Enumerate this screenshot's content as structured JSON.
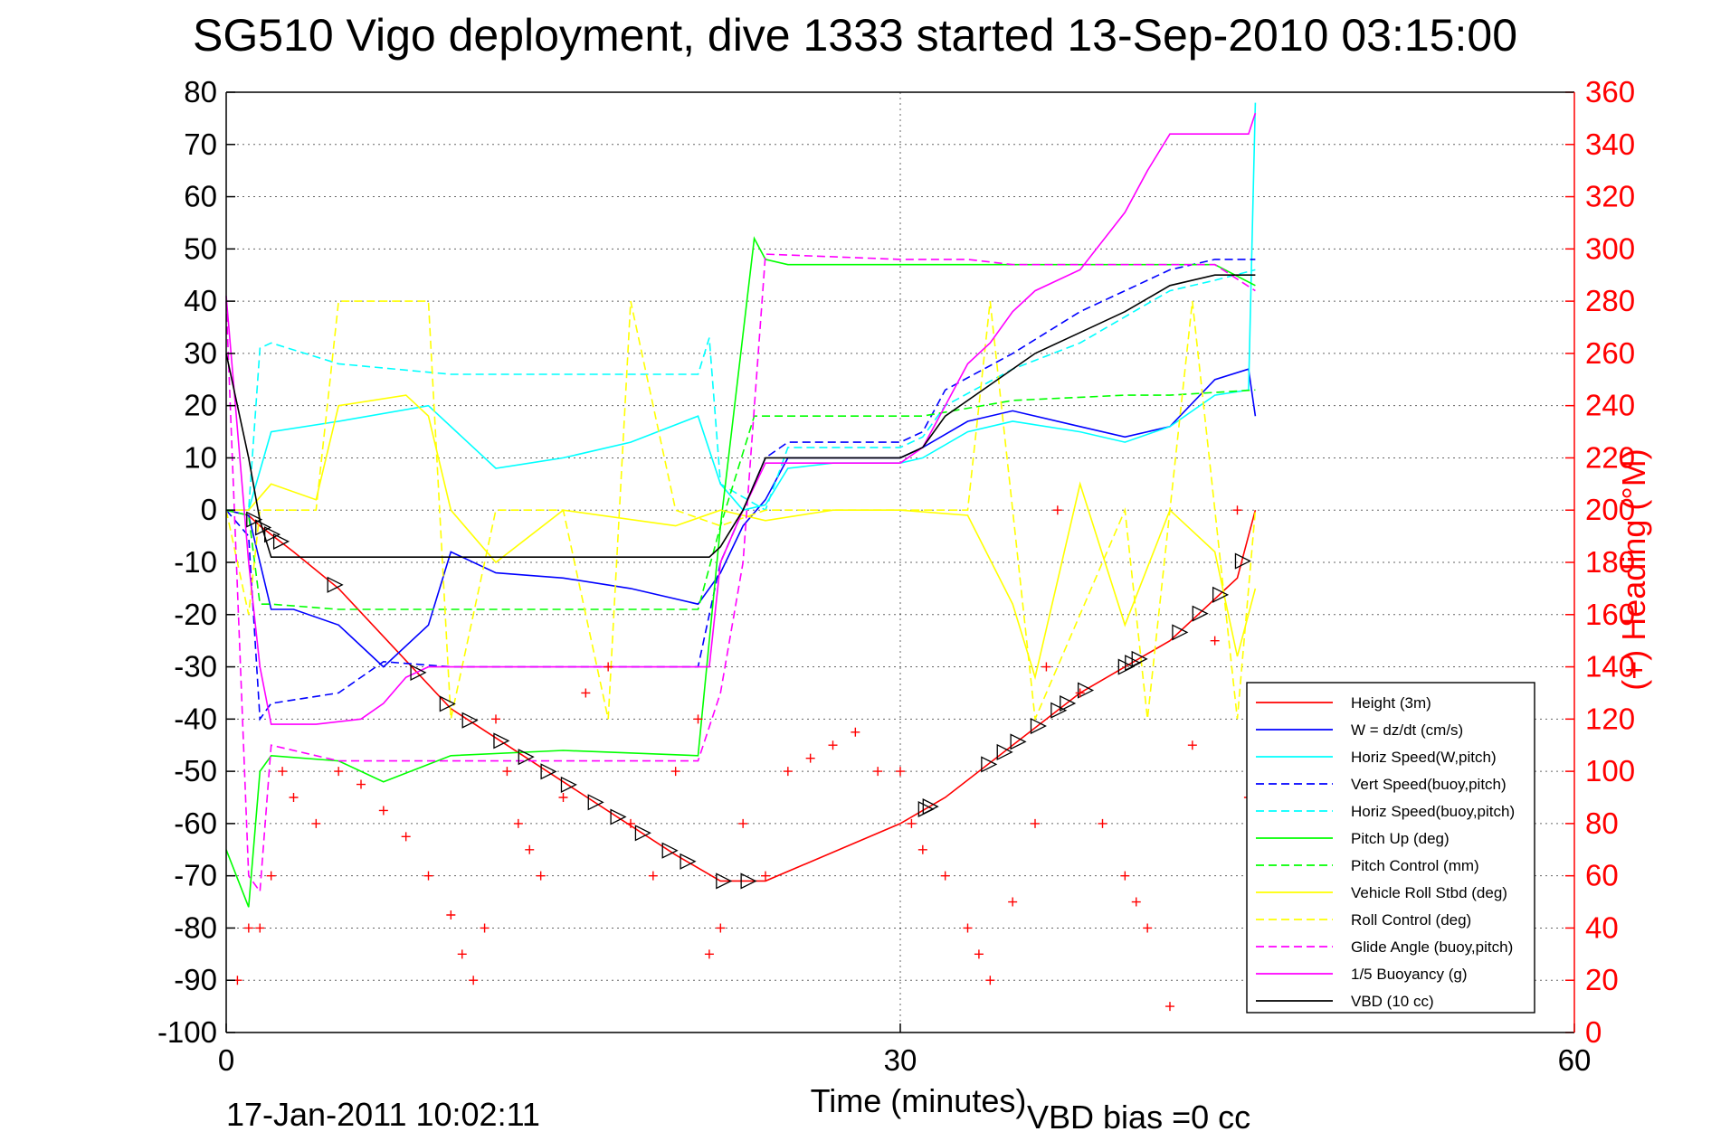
{
  "chart_data": {
    "type": "line",
    "title": "SG510 Vigo deployment, dive 1333 started 13-Sep-2010 03:15:00",
    "xlabel": "Time (minutes)",
    "ylabel": "",
    "ylabel_right": "(+) Heading (°M)",
    "xlim": [
      0,
      60
    ],
    "ylim": [
      -100,
      80
    ],
    "ylim_right": [
      0,
      360
    ],
    "x_ticks": [
      "0",
      "30",
      "60"
    ],
    "y_ticks": [
      "80",
      "70",
      "60",
      "50",
      "40",
      "30",
      "20",
      "10",
      "0",
      "-10",
      "-20",
      "-30",
      "-40",
      "-50",
      "-60",
      "-70",
      "-80",
      "-90",
      "-100"
    ],
    "y_right_ticks": [
      "360",
      "340",
      "320",
      "300",
      "280",
      "260",
      "240",
      "220",
      "200",
      "180",
      "160",
      "140",
      "120",
      "100",
      "80",
      "60",
      "40",
      "20",
      "0"
    ],
    "grid": true,
    "grid_x_positions": [
      30
    ],
    "legend_position": "bottom-right",
    "timestamp": "17-Jan-2011 10:02:11",
    "vbd_bias": "VBD bias =0 cc",
    "series": [
      {
        "name": "Height (3m)",
        "color": "#ff0000",
        "style": "solid",
        "x": [
          0,
          1,
          1.5,
          3,
          5,
          10,
          15,
          20,
          22,
          24,
          30,
          32,
          38,
          42,
          45,
          45.8
        ],
        "y": [
          0,
          -1,
          -3,
          -8,
          -15,
          -38,
          -52,
          -66,
          -71,
          -71,
          -60,
          -55,
          -35,
          -25,
          -13,
          0
        ]
      },
      {
        "name": "W = dz/dt (cm/s)",
        "color": "#0000ff",
        "style": "solid",
        "x": [
          0,
          1,
          2,
          3,
          5,
          7,
          9,
          10,
          12,
          15,
          18,
          21,
          22,
          23,
          24,
          25,
          27,
          30,
          31,
          33,
          35,
          38,
          40,
          42,
          44,
          45.5,
          45.8
        ],
        "y": [
          0,
          -1,
          -19,
          -19,
          -22,
          -30,
          -22,
          -8,
          -12,
          -13,
          -15,
          -18,
          -12,
          -3,
          2,
          10,
          10,
          10,
          12,
          17,
          19,
          16,
          14,
          16,
          25,
          27,
          18
        ]
      },
      {
        "name": "Horiz Speed(W,pitch)",
        "color": "#00ffff",
        "style": "solid",
        "x": [
          0,
          1,
          2,
          5,
          9,
          12,
          15,
          18,
          21,
          22,
          23,
          24,
          25,
          27,
          30,
          31,
          33,
          35,
          38,
          40,
          42,
          44,
          45.5,
          45.8
        ],
        "y": [
          0,
          0,
          15,
          17,
          20,
          8,
          10,
          13,
          18,
          5,
          0,
          1,
          8,
          9,
          9,
          10,
          15,
          17,
          15,
          13,
          16,
          22,
          23,
          78
        ]
      },
      {
        "name": "Vert Speed(buoy,pitch)",
        "color": "#0000ff",
        "style": "dashed",
        "x": [
          0,
          1,
          1.5,
          2,
          5,
          7,
          10,
          15,
          20,
          21,
          22,
          24,
          25,
          30,
          31,
          32,
          35,
          38,
          40,
          42,
          44,
          45.8
        ],
        "y": [
          0,
          -5,
          -40,
          -37,
          -35,
          -29,
          -30,
          -30,
          -30,
          -30,
          -10,
          10,
          13,
          13,
          15,
          23,
          30,
          38,
          42,
          46,
          48,
          48
        ]
      },
      {
        "name": "Horiz Speed(buoy,pitch)",
        "color": "#00ffff",
        "style": "dashed",
        "x": [
          0,
          1,
          1.5,
          2,
          5,
          10,
          15,
          21,
          21.5,
          22,
          24,
          25,
          30,
          31,
          32,
          35,
          38,
          40,
          42,
          44,
          45.8
        ],
        "y": [
          0,
          0,
          31,
          32,
          28,
          26,
          26,
          26,
          33,
          5,
          0,
          12,
          12,
          14,
          20,
          27,
          32,
          37,
          42,
          44,
          46
        ]
      },
      {
        "name": "Pitch Up (deg)",
        "color": "#00ff00",
        "style": "solid",
        "x": [
          0,
          1,
          1.5,
          2,
          5,
          7,
          10,
          15,
          21,
          22,
          23.5,
          24,
          25,
          30,
          33,
          35,
          40,
          42,
          44,
          45.8
        ],
        "y": [
          -65,
          -76,
          -50,
          -47,
          -48,
          -52,
          -47,
          -46,
          -47,
          -3,
          52,
          48,
          47,
          47,
          47,
          47,
          47,
          47,
          47,
          43
        ]
      },
      {
        "name": "Pitch Control (mm)",
        "color": "#00ff00",
        "style": "dashed",
        "x": [
          0,
          1,
          1.5,
          2,
          5,
          10,
          15,
          21,
          22,
          23.5,
          30,
          31,
          35,
          40,
          42,
          45.8
        ],
        "y": [
          0,
          -1,
          -18,
          -18,
          -19,
          -19,
          -19,
          -19,
          -3,
          18,
          18,
          18,
          21,
          22,
          22,
          23
        ]
      },
      {
        "name": "Vehicle Roll Stbd (deg)",
        "color": "#ffff00",
        "style": "solid",
        "x": [
          0,
          1,
          2,
          4,
          5,
          8,
          9,
          10,
          12,
          15,
          20,
          22,
          24,
          27,
          30,
          33,
          35,
          36,
          38,
          40,
          42,
          44,
          45,
          45.8
        ],
        "y": [
          0,
          0,
          5,
          2,
          20,
          22,
          18,
          0,
          -10,
          0,
          -3,
          0,
          -2,
          0,
          0,
          -1,
          -18,
          -32,
          5,
          -22,
          0,
          -8,
          -28,
          -15
        ]
      },
      {
        "name": "Roll Control (deg)",
        "color": "#ffff00",
        "style": "dashed",
        "x": [
          0,
          1,
          1.5,
          4,
          5,
          8,
          9,
          10,
          12,
          15,
          17,
          18,
          20,
          22,
          24,
          30,
          33,
          34,
          35,
          36,
          40,
          41,
          42,
          43,
          44,
          45,
          45.8
        ],
        "y": [
          0,
          -20,
          0,
          0,
          40,
          40,
          40,
          -40,
          0,
          0,
          -40,
          40,
          0,
          -3,
          0,
          0,
          0,
          40,
          0,
          -40,
          0,
          -40,
          0,
          40,
          0,
          -40,
          0
        ]
      },
      {
        "name": "Glide Angle (buoy,pitch)",
        "color": "#ff00ff",
        "style": "dashed",
        "x": [
          0,
          1,
          1.5,
          2,
          5,
          10,
          15,
          21,
          22,
          23,
          24,
          30,
          33,
          35,
          40,
          42,
          44,
          45.8
        ],
        "y": [
          40,
          -70,
          -73,
          -45,
          -48,
          -48,
          -48,
          -48,
          -35,
          -10,
          49,
          48,
          48,
          47,
          47,
          47,
          47,
          42
        ]
      },
      {
        "name": "1/5 Buoyancy (g)",
        "color": "#ff00ff",
        "style": "solid",
        "x": [
          0,
          1,
          1.5,
          2,
          4,
          6,
          7,
          8,
          9,
          10,
          15,
          20,
          21.5,
          22,
          23,
          24,
          30,
          31,
          32,
          33,
          34,
          35,
          36,
          38,
          40,
          41,
          42,
          43,
          44,
          45.5,
          45.8
        ],
        "y": [
          41,
          -10,
          -30,
          -41,
          -41,
          -40,
          -37,
          -32,
          -30,
          -30,
          -30,
          -30,
          -30,
          -10,
          0,
          9,
          9,
          12,
          20,
          28,
          32,
          38,
          42,
          46,
          57,
          65,
          72,
          72,
          72,
          72,
          76
        ]
      },
      {
        "name": "VBD (10 cc)",
        "color": "#000000",
        "style": "solid",
        "x": [
          0,
          1,
          1.5,
          2,
          10,
          15,
          20,
          21.5,
          22,
          23,
          24,
          30,
          31,
          32,
          34,
          36,
          38,
          40,
          42,
          44,
          45.8
        ],
        "y": [
          30,
          10,
          -2,
          -9,
          -9,
          -9,
          -9,
          -9,
          -7,
          0,
          10,
          10,
          12,
          18,
          24,
          30,
          34,
          38,
          43,
          45,
          45
        ]
      }
    ],
    "heading_points": {
      "name": "(+) Heading",
      "color": "#ff0000",
      "axis": "right",
      "x": [
        0.5,
        1,
        1.5,
        2,
        2.5,
        3,
        4,
        5,
        6,
        7,
        8,
        9,
        10,
        10.5,
        11,
        11.5,
        12,
        12.5,
        13,
        13.5,
        14,
        15,
        16,
        17,
        18,
        19,
        20,
        21,
        21.5,
        22,
        23,
        24,
        25,
        26,
        27,
        28,
        29,
        30,
        30.5,
        31,
        32,
        33,
        33.5,
        34,
        35,
        36,
        36.5,
        37,
        38,
        39,
        40,
        40.5,
        41,
        42,
        43,
        44,
        45,
        45.5,
        46
      ],
      "y": [
        20,
        40,
        40,
        60,
        100,
        90,
        80,
        100,
        95,
        85,
        75,
        60,
        45,
        30,
        20,
        40,
        120,
        100,
        80,
        70,
        60,
        90,
        130,
        140,
        80,
        60,
        100,
        120,
        30,
        40,
        80,
        60,
        100,
        105,
        110,
        115,
        100,
        100,
        80,
        70,
        60,
        40,
        30,
        20,
        50,
        80,
        140,
        200,
        130,
        80,
        60,
        50,
        40,
        10,
        110,
        150,
        200,
        90,
        80
      ]
    }
  }
}
